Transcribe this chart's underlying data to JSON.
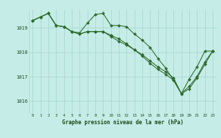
{
  "title": "Graphe pression niveau de la mer (hPa)",
  "bg_color": "#c5ece6",
  "grid_color": "#a8d8d0",
  "line_color": "#2d6b2d",
  "marker_color": "#2d6b2d",
  "text_color": "#1a4a1a",
  "x_ticks": [
    0,
    1,
    2,
    3,
    4,
    5,
    6,
    7,
    8,
    9,
    10,
    11,
    12,
    13,
    14,
    15,
    16,
    17,
    18,
    19,
    20,
    21,
    22,
    23
  ],
  "ylim": [
    1015.5,
    1019.75
  ],
  "y_ticks": [
    1016,
    1017,
    1018,
    1019
  ],
  "series": [
    [
      1019.3,
      1019.45,
      1019.6,
      1019.1,
      1019.05,
      1018.85,
      1018.8,
      1019.2,
      1019.55,
      1019.6,
      1019.1,
      1019.1,
      1019.05,
      1018.75,
      1018.5,
      1018.2,
      1017.75,
      1017.35,
      1016.85,
      1016.3,
      1016.9,
      1017.4,
      1018.05,
      1018.05
    ],
    [
      1019.3,
      1019.45,
      1019.6,
      1019.1,
      1019.05,
      1018.85,
      1018.75,
      1018.85,
      1018.85,
      1018.85,
      1018.65,
      1018.45,
      1018.3,
      1018.1,
      1017.9,
      1017.65,
      1017.4,
      1017.2,
      1016.95,
      1016.3,
      1016.6,
      1017.0,
      1017.6,
      1018.05
    ],
    [
      1019.3,
      1019.45,
      1019.6,
      1019.1,
      1019.05,
      1018.85,
      1018.75,
      1018.85,
      1018.85,
      1018.85,
      1018.7,
      1018.55,
      1018.35,
      1018.1,
      1017.85,
      1017.55,
      1017.3,
      1017.1,
      1016.85,
      1016.3,
      1016.5,
      1016.95,
      1017.5,
      1018.05
    ]
  ]
}
